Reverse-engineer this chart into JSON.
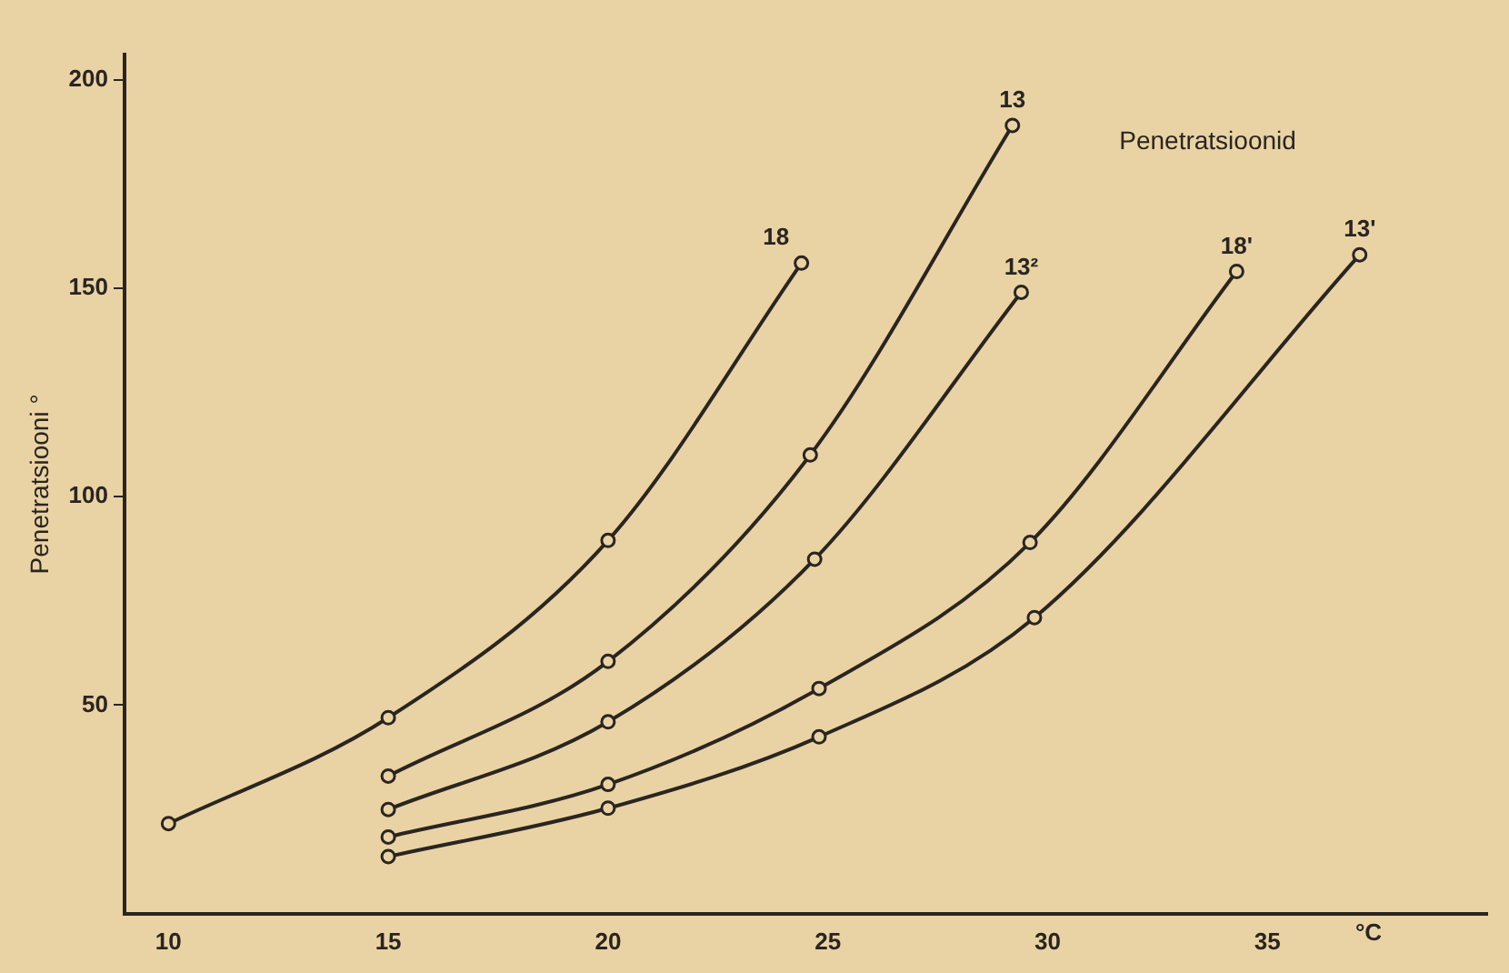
{
  "chart_data": {
    "type": "line",
    "xlabel": "°C",
    "ylabel": "Penetratsiooni °",
    "annotations": [
      "Penetratsioonid"
    ],
    "xlim": [
      9,
      40
    ],
    "xticks": [
      10,
      15,
      20,
      25,
      30,
      35
    ],
    "ylim": [
      0,
      206
    ],
    "yticks": [
      50,
      100,
      150,
      200
    ],
    "grid": false,
    "legend": false,
    "marker": "circle",
    "line_style": "solid",
    "series": [
      {
        "name": "18",
        "color": "#2a2520",
        "x": [
          10,
          15,
          20,
          24.4
        ],
        "values": [
          21.6,
          47,
          89.5,
          156
        ]
      },
      {
        "name": "13",
        "color": "#2a2520",
        "x": [
          15,
          20,
          24.6,
          29.2
        ],
        "values": [
          33,
          60.5,
          110,
          189
        ]
      },
      {
        "name": "13²",
        "color": "#2a2520",
        "x": [
          15,
          20,
          24.7,
          29.4
        ],
        "values": [
          25,
          46,
          85,
          149
        ]
      },
      {
        "name": "18'",
        "color": "#2a2520",
        "x": [
          15,
          20,
          24.8,
          29.6,
          34.3
        ],
        "values": [
          18.4,
          31,
          54,
          89,
          154
        ]
      },
      {
        "name": "13'",
        "color": "#2a2520",
        "x": [
          15,
          20,
          24.8,
          29.7,
          37.1
        ],
        "values": [
          13.7,
          25.3,
          42.4,
          71,
          158
        ]
      }
    ]
  }
}
